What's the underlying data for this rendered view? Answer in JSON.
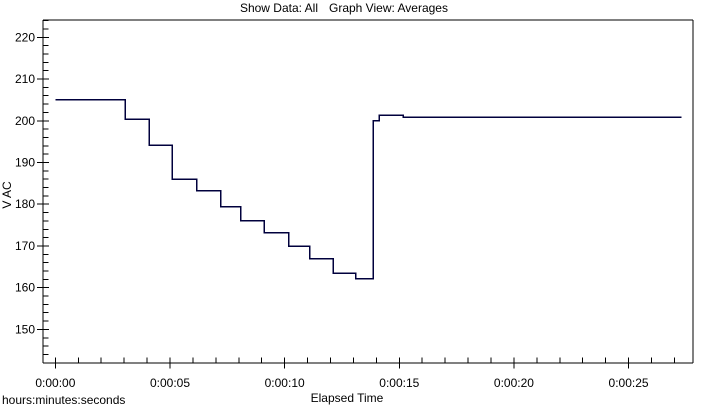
{
  "header": {
    "show_data_label": "Show Data: All",
    "graph_view_label": "Graph View: Averages"
  },
  "footer": {
    "time_format_note": "hours:minutes:seconds"
  },
  "colors": {
    "background": "#ffffff",
    "axis": "#000000",
    "text": "#000000",
    "line": "#00003c"
  },
  "chart_data": {
    "type": "line",
    "line_style": "step-after",
    "title": "Show Data: All   Graph View: Averages",
    "xlabel": "Elapsed Time",
    "ylabel": "V AC",
    "x_unit_note": "hours:minutes:seconds",
    "grid": false,
    "legend": false,
    "xlim": [
      -0.54,
      27.81
    ],
    "ylim": [
      141.96,
      224.14
    ],
    "x_major_ticks": [
      {
        "t": 0,
        "label": "0:00:00"
      },
      {
        "t": 5,
        "label": "0:00:05"
      },
      {
        "t": 10,
        "label": "0:00:10"
      },
      {
        "t": 15,
        "label": "0:00:15"
      },
      {
        "t": 20,
        "label": "0:00:20"
      },
      {
        "t": 25,
        "label": "0:00:25"
      }
    ],
    "x_minor_step": 1,
    "x_minor_range": [
      1,
      27
    ],
    "y_major_ticks": [
      {
        "v": 150,
        "label": "150"
      },
      {
        "v": 160,
        "label": "160"
      },
      {
        "v": 170,
        "label": "170"
      },
      {
        "v": 180,
        "label": "180"
      },
      {
        "v": 190,
        "label": "190"
      },
      {
        "v": 200,
        "label": "200"
      },
      {
        "v": 210,
        "label": "210"
      },
      {
        "v": 220,
        "label": "220"
      }
    ],
    "y_minor_step": 2,
    "y_minor_range": [
      142,
      224
    ],
    "series": [
      {
        "name": "V AC averages",
        "t_end": 27.3,
        "points": [
          {
            "t": 0,
            "v": 205.0
          },
          {
            "t": 3.04,
            "v": 200.4
          },
          {
            "t": 4.1,
            "v": 194.2
          },
          {
            "t": 5.09,
            "v": 186.0
          },
          {
            "t": 6.17,
            "v": 183.2
          },
          {
            "t": 7.21,
            "v": 179.4
          },
          {
            "t": 8.08,
            "v": 176.0
          },
          {
            "t": 9.11,
            "v": 173.2
          },
          {
            "t": 10.17,
            "v": 170.0
          },
          {
            "t": 11.1,
            "v": 166.9
          },
          {
            "t": 12.12,
            "v": 163.5
          },
          {
            "t": 13.09,
            "v": 162.1
          },
          {
            "t": 13.86,
            "v": 200.0
          },
          {
            "t": 14.13,
            "v": 201.3
          },
          {
            "t": 15.17,
            "v": 200.9
          }
        ]
      }
    ]
  }
}
